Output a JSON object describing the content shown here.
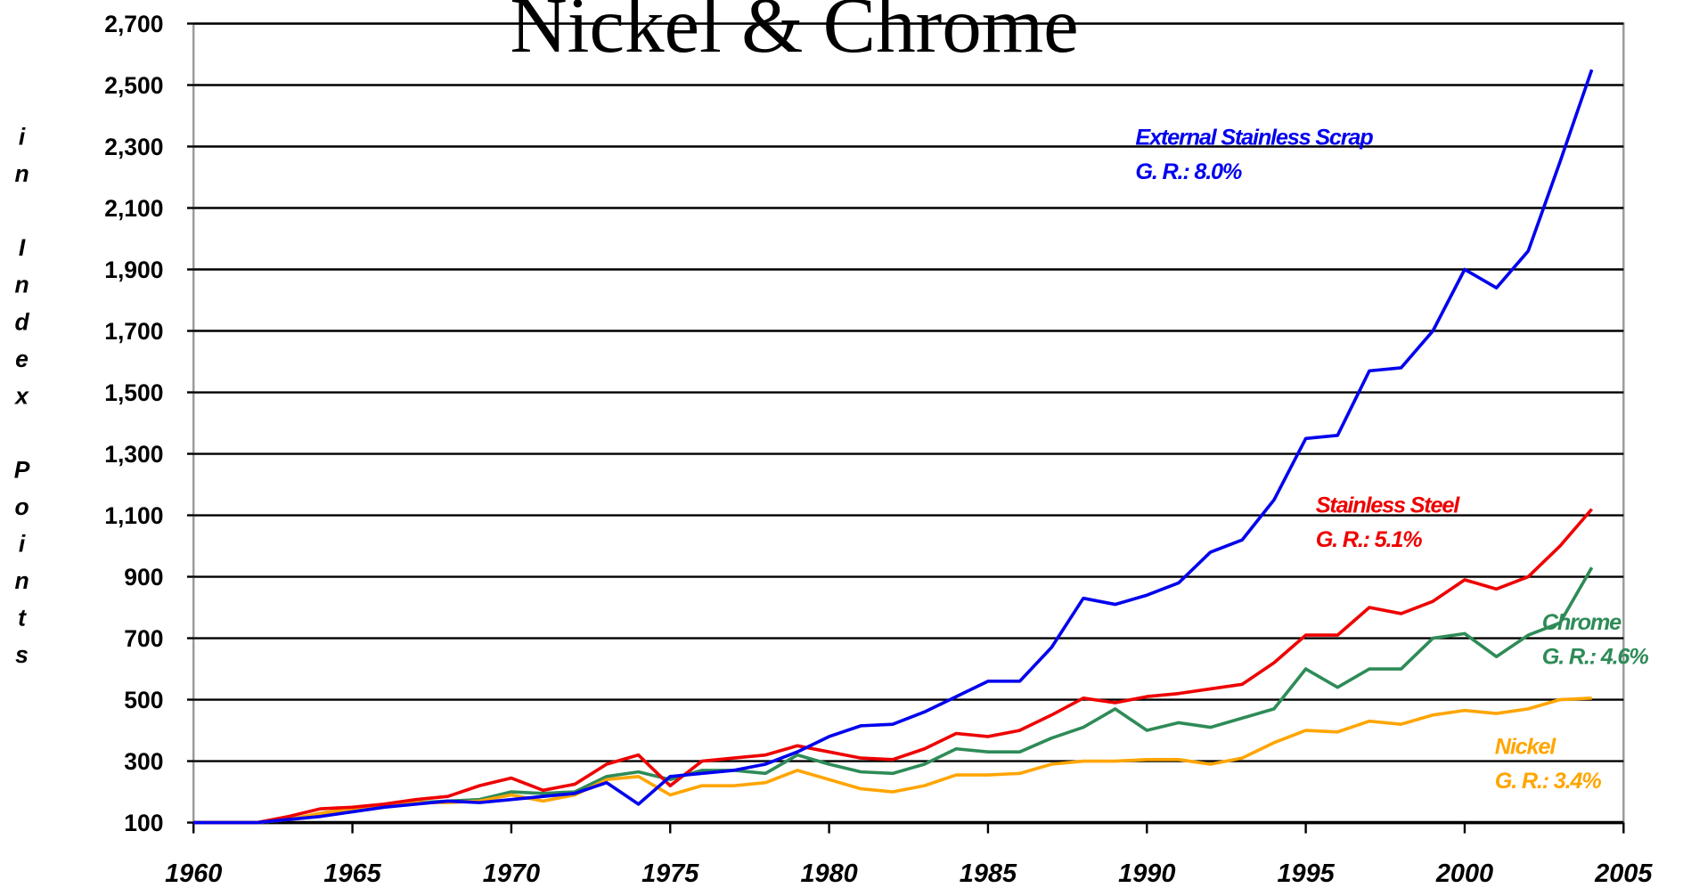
{
  "chart_data": {
    "type": "line",
    "title": "Nickel & Chrome",
    "y_label": "in Index Points",
    "x": [
      1960,
      1961,
      1962,
      1963,
      1964,
      1965,
      1966,
      1967,
      1968,
      1969,
      1970,
      1971,
      1972,
      1973,
      1974,
      1975,
      1976,
      1977,
      1978,
      1979,
      1980,
      1981,
      1982,
      1983,
      1984,
      1985,
      1986,
      1987,
      1988,
      1989,
      1990,
      1991,
      1992,
      1993,
      1994,
      1995,
      1996,
      1997,
      1998,
      1999,
      2000,
      2001,
      2002,
      2003,
      2004
    ],
    "series": [
      {
        "name": "External Stainless Scrap",
        "note": "G. R.: 8.0%",
        "color": "#0000ee",
        "values": [
          100,
          100,
          100,
          110,
          120,
          135,
          150,
          160,
          170,
          165,
          175,
          185,
          195,
          230,
          160,
          250,
          260,
          270,
          290,
          330,
          380,
          415,
          420,
          460,
          510,
          560,
          560,
          670,
          830,
          810,
          840,
          880,
          980,
          1020,
          1150,
          1350,
          1360,
          1570,
          1580,
          1700,
          1900,
          1840,
          1960,
          2250,
          2550
        ]
      },
      {
        "name": "Stainless  Steel",
        "note": "G. R.: 5.1%",
        "color": "#ee0000",
        "values": [
          100,
          100,
          100,
          120,
          145,
          150,
          160,
          175,
          185,
          220,
          245,
          205,
          225,
          290,
          320,
          220,
          300,
          310,
          320,
          350,
          330,
          310,
          305,
          340,
          390,
          380,
          400,
          450,
          505,
          490,
          510,
          520,
          535,
          550,
          620,
          710,
          710,
          800,
          780,
          820,
          890,
          860,
          900,
          1000,
          1120
        ]
      },
      {
        "name": "Chrome",
        "note": "G. R.: 4.6%",
        "color": "#2e8b57",
        "values": [
          100,
          100,
          100,
          110,
          130,
          145,
          155,
          165,
          170,
          175,
          200,
          195,
          200,
          250,
          265,
          240,
          270,
          270,
          260,
          320,
          290,
          265,
          260,
          290,
          340,
          330,
          330,
          375,
          410,
          470,
          400,
          425,
          410,
          440,
          470,
          600,
          540,
          600,
          600,
          700,
          715,
          640,
          710,
          750,
          930
        ]
      },
      {
        "name": "Nickel",
        "note": "G. R.: 3.4%",
        "color": "#ffa500",
        "values": [
          100,
          100,
          100,
          110,
          130,
          145,
          155,
          165,
          165,
          170,
          190,
          170,
          190,
          240,
          250,
          190,
          220,
          220,
          230,
          270,
          240,
          210,
          200,
          220,
          255,
          255,
          260,
          290,
          300,
          300,
          305,
          305,
          290,
          310,
          360,
          400,
          395,
          430,
          420,
          450,
          465,
          455,
          470,
          500,
          505
        ]
      }
    ],
    "xlim": [
      1960,
      2005
    ],
    "xticks": [
      1960,
      1965,
      1970,
      1975,
      1980,
      1985,
      1990,
      1995,
      2000,
      2005
    ],
    "ylim": [
      100,
      2700
    ],
    "yticks": [
      100,
      300,
      500,
      700,
      900,
      {
        "value": 1100,
        "label": "1,100"
      },
      {
        "value": 1300,
        "label": "1,300"
      },
      {
        "value": 1500,
        "label": "1,500"
      },
      {
        "value": 1700,
        "label": "1,700"
      },
      {
        "value": 1900,
        "label": "1,900"
      },
      {
        "value": 2100,
        "label": "2,100"
      },
      {
        "value": 2300,
        "label": "2,300"
      },
      {
        "value": 2500,
        "label": "2,500"
      },
      {
        "value": 2700,
        "label": "2,700"
      }
    ],
    "grid": true
  }
}
